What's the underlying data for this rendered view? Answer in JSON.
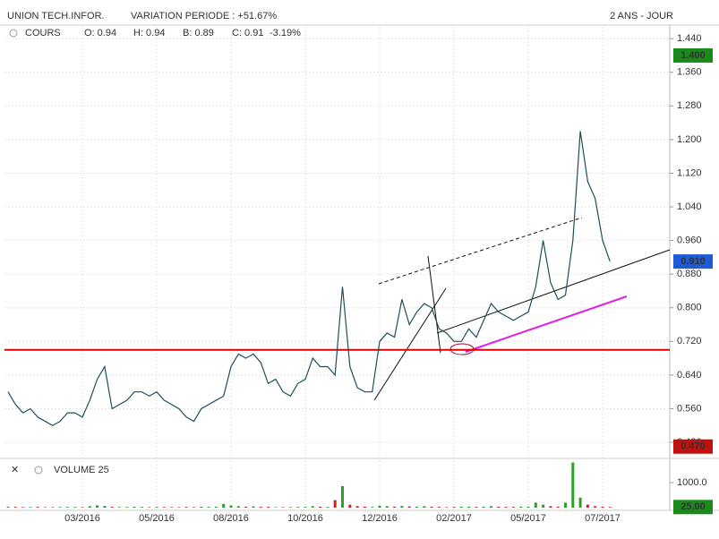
{
  "chart_data": [
    {
      "type": "line",
      "title": "UNION TECH.INFOR.",
      "subtitle": "VARIATION PERIODE : +51.67%",
      "period": "2 ANS - JOUR",
      "label": "COURS",
      "ohlc_labels": [
        "O: 0.94",
        "H: 0.94",
        "B: 0.89",
        "C: 0.91"
      ],
      "change": "-3.19%",
      "change_color": "#e00000",
      "categories": [
        null,
        null,
        null,
        null,
        null,
        null,
        null,
        null,
        null,
        null,
        "03/2016",
        null,
        null,
        null,
        null,
        null,
        null,
        null,
        null,
        null,
        "05/2016",
        null,
        null,
        null,
        null,
        null,
        null,
        null,
        null,
        null,
        "08/2016",
        null,
        null,
        null,
        null,
        null,
        null,
        null,
        null,
        null,
        "10/2016",
        null,
        null,
        null,
        null,
        null,
        null,
        null,
        null,
        null,
        "12/2016",
        null,
        null,
        null,
        null,
        null,
        null,
        null,
        null,
        null,
        "02/2017",
        null,
        null,
        null,
        null,
        null,
        null,
        null,
        null,
        null,
        "05/2017",
        null,
        null,
        null,
        null,
        null,
        null,
        null,
        null,
        null,
        "07/2017",
        null
      ],
      "values": [
        0.6,
        0.57,
        0.55,
        0.56,
        0.54,
        0.53,
        0.52,
        0.53,
        0.55,
        0.55,
        0.54,
        0.58,
        0.63,
        0.66,
        0.56,
        0.57,
        0.58,
        0.6,
        0.6,
        0.59,
        0.6,
        0.58,
        0.57,
        0.56,
        0.54,
        0.53,
        0.56,
        0.57,
        0.58,
        0.59,
        0.66,
        0.69,
        0.68,
        0.69,
        0.67,
        0.62,
        0.63,
        0.6,
        0.59,
        0.62,
        0.63,
        0.68,
        0.66,
        0.66,
        0.64,
        0.85,
        0.66,
        0.61,
        0.6,
        0.6,
        0.72,
        0.74,
        0.73,
        0.82,
        0.76,
        0.79,
        0.81,
        0.8,
        0.75,
        0.74,
        0.72,
        0.72,
        0.75,
        0.73,
        0.77,
        0.81,
        0.79,
        0.78,
        0.77,
        0.78,
        0.79,
        0.85,
        0.96,
        0.86,
        0.82,
        0.83,
        0.96,
        1.22,
        1.1,
        1.06,
        0.96,
        0.91
      ],
      "color": "#1b4f5e",
      "ylim": [
        0.446,
        1.468
      ],
      "yticks": [
        {
          "value": 1.44,
          "label": "1.440"
        },
        {
          "value": 1.36,
          "label": "1.360"
        },
        {
          "value": 1.28,
          "label": "1.280"
        },
        {
          "value": 1.2,
          "label": "1.200"
        },
        {
          "value": 1.12,
          "label": "1.120"
        },
        {
          "value": 1.04,
          "label": "1.040"
        },
        {
          "value": 0.96,
          "label": "0.960"
        },
        {
          "value": 0.88,
          "label": "0.880"
        },
        {
          "value": 0.8,
          "label": "0.800"
        },
        {
          "value": 0.72,
          "label": "0.720"
        },
        {
          "value": 0.64,
          "label": "0.640"
        },
        {
          "value": 0.56,
          "label": "0.560"
        },
        {
          "value": 0.48,
          "label": "0.480"
        }
      ],
      "markers": [
        {
          "value": 1.4,
          "label": "1.400",
          "color": "#1a8a1a"
        },
        {
          "value": 0.91,
          "label": "0.910",
          "color": "#1e5bd6"
        },
        {
          "value": 0.47,
          "label": "0.470",
          "color": "#c01010"
        }
      ],
      "hline": {
        "value": 0.7,
        "color": "#e00000"
      },
      "grid": true
    },
    {
      "type": "bar",
      "label": "VOLUME 25",
      "values": [
        40,
        30,
        20,
        25,
        30,
        20,
        20,
        25,
        30,
        30,
        20,
        60,
        90,
        70,
        30,
        25,
        30,
        40,
        30,
        20,
        30,
        25,
        20,
        20,
        30,
        20,
        40,
        30,
        40,
        150,
        90,
        60,
        40,
        50,
        30,
        30,
        20,
        20,
        20,
        30,
        30,
        60,
        40,
        30,
        300,
        860,
        120,
        60,
        40,
        30,
        80,
        60,
        40,
        70,
        50,
        40,
        60,
        40,
        30,
        20,
        30,
        40,
        40,
        30,
        40,
        60,
        40,
        30,
        30,
        40,
        40,
        200,
        120,
        60,
        40,
        200,
        1800,
        400,
        120,
        60,
        40,
        25
      ],
      "up_color": "#2ca02c",
      "down_color": "#d62020",
      "ylim": [
        0,
        1857
      ],
      "yticks": [
        {
          "value": 1000,
          "label": "1000.0"
        }
      ],
      "markers": [
        {
          "value": 25,
          "label": "25.00",
          "color": "#1a8a1a"
        }
      ]
    }
  ]
}
